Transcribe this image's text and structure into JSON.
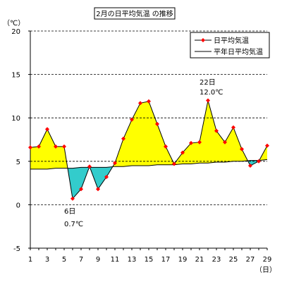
{
  "chart_data": {
    "type": "line",
    "title": "2月の日平均気温 の推移",
    "ylabel": "（℃）",
    "xlabel": "（日）",
    "ylim": [
      -5,
      20
    ],
    "xlim": [
      1,
      29
    ],
    "yticks": [
      -5,
      0,
      5,
      10,
      15,
      20
    ],
    "xticks": [
      1,
      3,
      5,
      7,
      9,
      11,
      13,
      15,
      17,
      19,
      21,
      23,
      25,
      27,
      29
    ],
    "grid": "horizontal dashed",
    "legend_position": "top-right",
    "x": [
      1,
      2,
      3,
      4,
      5,
      6,
      7,
      8,
      9,
      10,
      11,
      12,
      13,
      14,
      15,
      16,
      17,
      18,
      19,
      20,
      21,
      22,
      23,
      24,
      25,
      26,
      27,
      28,
      29
    ],
    "series": [
      {
        "name": "日平均気温",
        "color": "#ff0000",
        "marker": "diamond",
        "values": [
          6.6,
          6.7,
          8.7,
          6.7,
          6.7,
          0.7,
          1.8,
          4.4,
          1.8,
          3.2,
          4.8,
          7.6,
          9.8,
          11.7,
          11.9,
          9.3,
          6.7,
          4.7,
          6.0,
          7.1,
          7.2,
          12.0,
          8.5,
          7.2,
          8.9,
          6.4,
          4.5,
          5.0,
          6.8
        ]
      },
      {
        "name": "平年日平均気温",
        "color": "#000000",
        "values": [
          4.1,
          4.1,
          4.1,
          4.2,
          4.2,
          4.2,
          4.3,
          4.3,
          4.3,
          4.3,
          4.4,
          4.4,
          4.5,
          4.5,
          4.5,
          4.6,
          4.6,
          4.6,
          4.7,
          4.7,
          4.8,
          4.8,
          4.9,
          4.9,
          5.0,
          5.0,
          5.1,
          5.1,
          5.2
        ]
      }
    ],
    "fill_above_color": "#ffff00",
    "fill_below_color": "#33cccc",
    "annotations": [
      {
        "day_label": "22日",
        "value_label": "12.0℃"
      },
      {
        "day_label": "6日",
        "value_label": "0.7℃"
      }
    ]
  }
}
